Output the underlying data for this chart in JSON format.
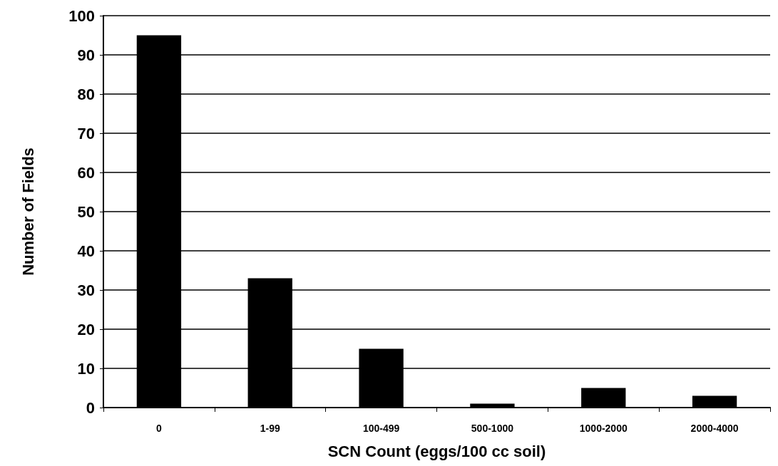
{
  "chart_data": {
    "type": "bar",
    "xlabel": "SCN Count (eggs/100 cc soil)",
    "ylabel": "Number of Fields",
    "categories": [
      "0",
      "1-99",
      "100-499",
      "500-1000",
      "1000-2000",
      "2000-4000"
    ],
    "values": [
      95,
      33,
      15,
      1,
      5,
      3
    ],
    "color": "#000000",
    "ylim": [
      0,
      100
    ],
    "yticks": [
      0,
      10,
      20,
      30,
      40,
      50,
      60,
      70,
      80,
      90,
      100
    ],
    "grid": "y"
  }
}
